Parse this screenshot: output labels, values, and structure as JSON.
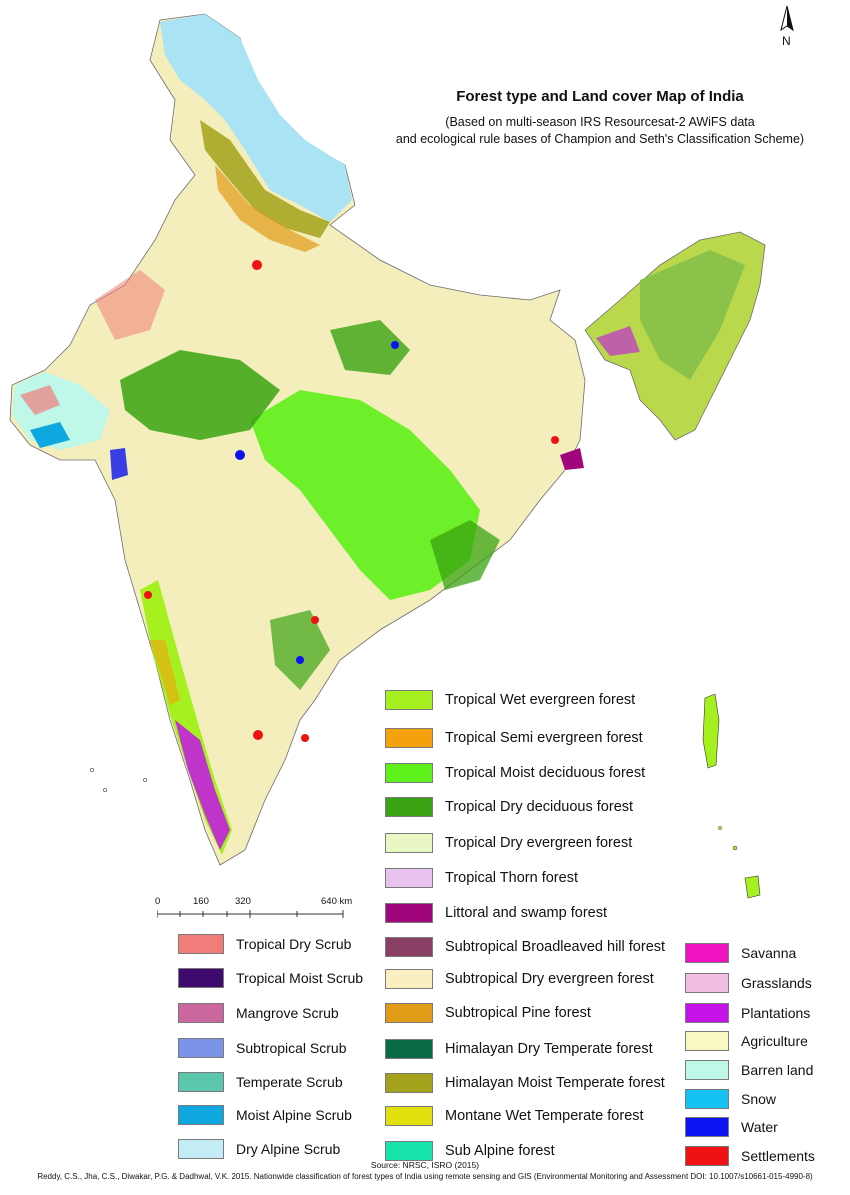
{
  "title": "Forest type and Land cover Map of India",
  "subtitle_line1": "(Based on multi-season IRS Resourcesat-2 AWiFS data",
  "subtitle_line2": "and ecological rule bases of Champion and Seth's Classification Scheme)",
  "north_label": "N",
  "scale": {
    "ticks": [
      "0",
      "160",
      "320",
      "640 km"
    ]
  },
  "legend_forest": [
    {
      "label": "Tropical Wet evergreen forest",
      "color": "#a6f020"
    },
    {
      "label": "Tropical Semi evergreen forest",
      "color": "#f5a10d"
    },
    {
      "label": "Tropical Moist deciduous forest",
      "color": "#5ef01a"
    },
    {
      "label": "Tropical Dry deciduous forest",
      "color": "#3aa312"
    },
    {
      "label": "Tropical Dry evergreen forest",
      "color": "#e9f7c4"
    },
    {
      "label": "Tropical Thorn forest",
      "color": "#e8c3ef"
    },
    {
      "label": "Littoral and swamp forest",
      "color": "#a0057c"
    },
    {
      "label": "Subtropical Broadleaved hill forest",
      "color": "#8a3f64"
    },
    {
      "label": "Subtropical Dry evergreen forest",
      "color": "#faefc0"
    },
    {
      "label": "Subtropical Pine forest",
      "color": "#e09b17"
    },
    {
      "label": "Himalayan Dry Temperate forest",
      "color": "#0b6a46"
    },
    {
      "label": "Himalayan Moist Temperate forest",
      "color": "#a3a21a"
    },
    {
      "label": "Montane Wet Temperate forest",
      "color": "#e1e00e"
    },
    {
      "label": "Sub Alpine forest",
      "color": "#17e3aa"
    }
  ],
  "legend_scrub": [
    {
      "label": "Tropical Dry Scrub",
      "color": "#f07d7a"
    },
    {
      "label": "Tropical Moist Scrub",
      "color": "#3e0a6e"
    },
    {
      "label": "Mangrove Scrub",
      "color": "#cc669f"
    },
    {
      "label": "Subtropical Scrub",
      "color": "#7c93ea"
    },
    {
      "label": "Temperate Scrub",
      "color": "#5bc7ab"
    },
    {
      "label": "Moist Alpine Scrub",
      "color": "#0ea7df"
    },
    {
      "label": "Dry Alpine Scrub",
      "color": "#c4ecf6"
    }
  ],
  "legend_landcover": [
    {
      "label": "Savanna",
      "color": "#ef12c1"
    },
    {
      "label": "Grasslands",
      "color": "#f2bde2"
    },
    {
      "label": "Plantations",
      "color": "#c313e8"
    },
    {
      "label": "Agriculture",
      "color": "#f9f7c2"
    },
    {
      "label": "Barren land",
      "color": "#bff7e8"
    },
    {
      "label": "Snow",
      "color": "#14c3f1"
    },
    {
      "label": "Water",
      "color": "#0a13f0"
    },
    {
      "label": "Settlements",
      "color": "#f01212"
    }
  ],
  "source": "Source: NRSC, ISRO (2015)",
  "citation": "Reddy, C.S., Jha, C.S., Diwakar, P.G. & Dadhwal, V.K. 2015. Nationwide classification of forest types of India using remote sensing and GIS (Environmental Monitoring and Assessment DOI: 10.1007/s10661-015-4990-8)"
}
